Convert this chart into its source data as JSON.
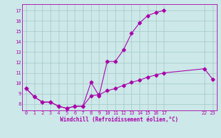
{
  "background_color": "#cce8e8",
  "grid_color": "#aacccc",
  "line_color": "#aa00aa",
  "xlabel": "Windchill (Refroidissement éolien,°C)",
  "xlim": [
    -0.5,
    23.5
  ],
  "ylim": [
    7.4,
    17.6
  ],
  "xticks": [
    0,
    1,
    2,
    3,
    4,
    5,
    6,
    7,
    8,
    9,
    10,
    11,
    12,
    13,
    14,
    15,
    16,
    17,
    22,
    23
  ],
  "yticks": [
    8,
    9,
    10,
    11,
    12,
    13,
    14,
    15,
    16,
    17
  ],
  "line1_x": [
    0,
    1,
    2,
    3,
    4,
    5,
    6,
    7,
    8,
    9,
    10,
    11,
    12,
    13,
    14,
    15,
    16,
    17
  ],
  "line1_y": [
    9.5,
    8.7,
    8.2,
    8.2,
    7.8,
    7.6,
    7.8,
    7.8,
    10.1,
    8.8,
    12.1,
    12.1,
    13.2,
    14.8,
    15.8,
    16.5,
    16.8,
    17.0
  ],
  "line2_x": [
    0,
    1,
    2,
    3,
    4,
    5,
    6,
    7,
    8,
    9,
    10,
    11,
    12,
    13,
    14,
    15,
    16,
    17,
    22,
    23
  ],
  "line2_y": [
    9.5,
    8.7,
    8.2,
    8.2,
    7.8,
    7.6,
    7.8,
    7.8,
    8.8,
    8.9,
    9.3,
    9.5,
    9.8,
    10.1,
    10.3,
    10.6,
    10.8,
    11.0,
    11.4,
    10.4
  ],
  "marker_size": 2.5,
  "linewidth": 0.8,
  "tick_fontsize": 5.0,
  "xlabel_fontsize": 5.5
}
